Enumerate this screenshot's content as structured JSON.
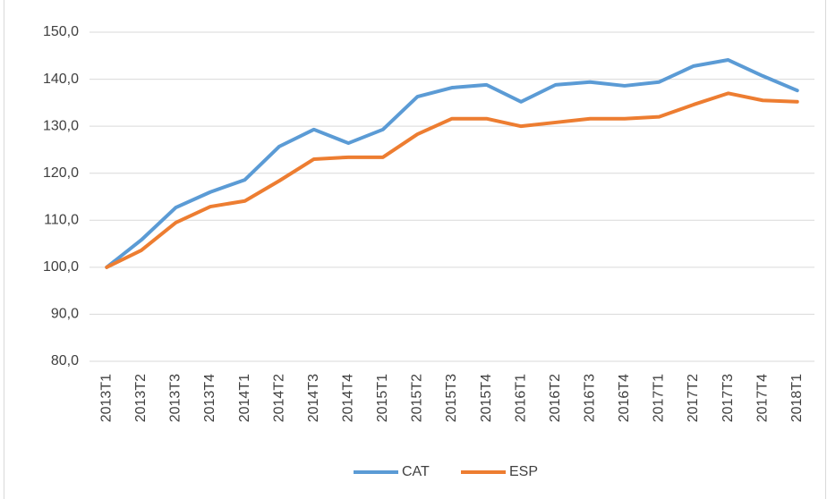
{
  "chart_data": {
    "type": "line",
    "categories": [
      "2013T1",
      "2013T2",
      "2013T3",
      "2013T4",
      "2014T1",
      "2014T2",
      "2014T3",
      "2014T4",
      "2015T1",
      "2015T2",
      "2015T3",
      "2015T4",
      "2016T1",
      "2016T2",
      "2016T3",
      "2016T4",
      "2017T1",
      "2017T2",
      "2017T3",
      "2017T4",
      "2018T1"
    ],
    "series": [
      {
        "name": "CAT",
        "color": "#5b9bd5",
        "values": [
          100,
          105.8,
          112.7,
          116,
          118.6,
          125.7,
          129.3,
          126.4,
          129.3,
          136.3,
          138.2,
          138.8,
          135.2,
          138.8,
          139.4,
          138.6,
          139.4,
          142.8,
          144.1,
          140.7,
          137.6
        ]
      },
      {
        "name": "ESP",
        "color": "#ed7d31",
        "values": [
          100,
          103.6,
          109.5,
          112.9,
          114.1,
          118.4,
          123,
          123.4,
          123.4,
          128.3,
          131.6,
          131.6,
          130,
          130.8,
          131.6,
          131.6,
          132,
          134.6,
          137,
          135.5,
          135.2
        ]
      }
    ],
    "ylim": [
      80,
      150
    ],
    "yticks": [
      {
        "value": 80,
        "label": "80,0"
      },
      {
        "value": 90,
        "label": "90,0"
      },
      {
        "value": 100,
        "label": "100,0"
      },
      {
        "value": 110,
        "label": "110,0"
      },
      {
        "value": 120,
        "label": "120,0"
      },
      {
        "value": 130,
        "label": "130,0"
      },
      {
        "value": 140,
        "label": "140,0"
      },
      {
        "value": 150,
        "label": "150,0"
      }
    ],
    "grid": true,
    "legend": "bottom"
  }
}
